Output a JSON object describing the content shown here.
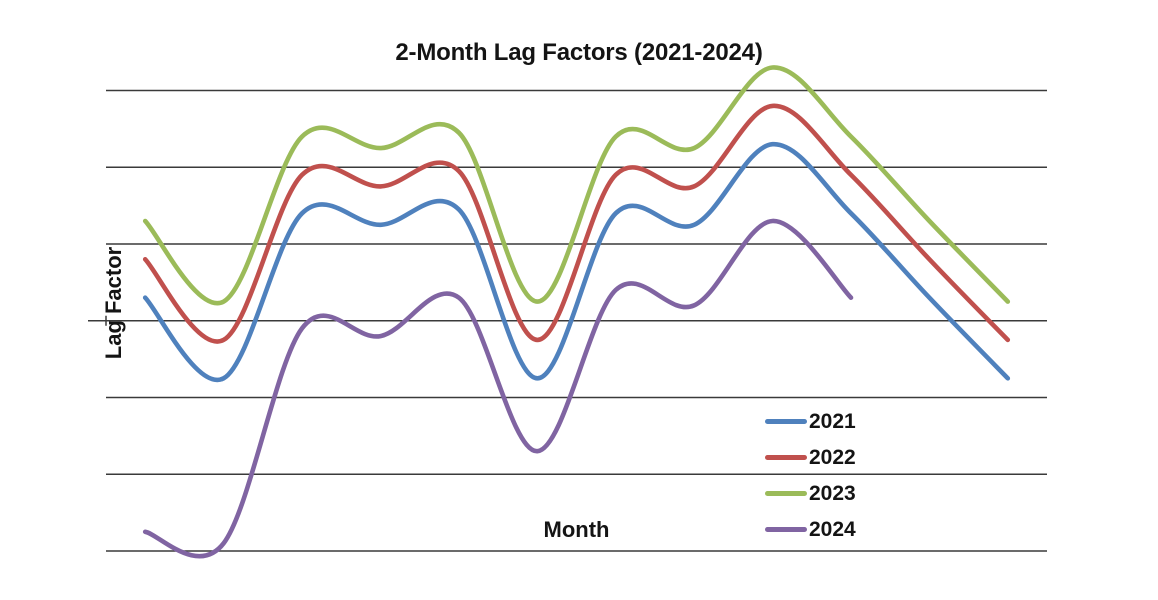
{
  "title": "2-Month Lag Factors (2021-2024)",
  "chart_data": {
    "type": "line",
    "smooth": true,
    "title": "2-Month Lag Factors (2021-2024)",
    "xlabel": "Month",
    "ylabel": "Lag Factor",
    "x_note": "12 monthly categories, no tick labels shown on either axis",
    "ylim": [
      0.7,
      1.3
    ],
    "y_gridline_step": 0.1,
    "axis_cross_value": 1.0,
    "grid": "horizontal",
    "tick_labels_visible": false,
    "legend_position": "inside lower right",
    "background_color": "#ffffff",
    "gridline_color": "#3a3a3a",
    "series": [
      {
        "name": "2021",
        "color": "#4F81BD",
        "x": [
          1,
          2,
          3,
          4,
          5,
          6,
          7,
          8,
          9,
          10,
          11,
          12
        ],
        "values": [
          1.03,
          0.925,
          1.14,
          1.125,
          1.145,
          0.925,
          1.14,
          1.125,
          1.23,
          1.14,
          1.03,
          0.925
        ]
      },
      {
        "name": "2022",
        "color": "#C0504D",
        "x": [
          1,
          2,
          3,
          4,
          5,
          6,
          7,
          8,
          9,
          10,
          11,
          12
        ],
        "values": [
          1.08,
          0.975,
          1.19,
          1.175,
          1.195,
          0.975,
          1.19,
          1.175,
          1.28,
          1.19,
          1.08,
          0.975
        ]
      },
      {
        "name": "2023",
        "color": "#9BBB59",
        "x": [
          1,
          2,
          3,
          4,
          5,
          6,
          7,
          8,
          9,
          10,
          11,
          12
        ],
        "values": [
          1.13,
          1.025,
          1.24,
          1.225,
          1.245,
          1.025,
          1.24,
          1.225,
          1.33,
          1.24,
          1.13,
          1.025
        ]
      },
      {
        "name": "2024",
        "color": "#8064A2",
        "x": [
          1,
          2,
          3,
          4,
          5,
          6,
          7,
          8,
          9,
          10
        ],
        "values": [
          0.725,
          0.71,
          0.99,
          0.98,
          1.03,
          0.83,
          1.04,
          1.02,
          1.13,
          1.03
        ]
      }
    ]
  }
}
